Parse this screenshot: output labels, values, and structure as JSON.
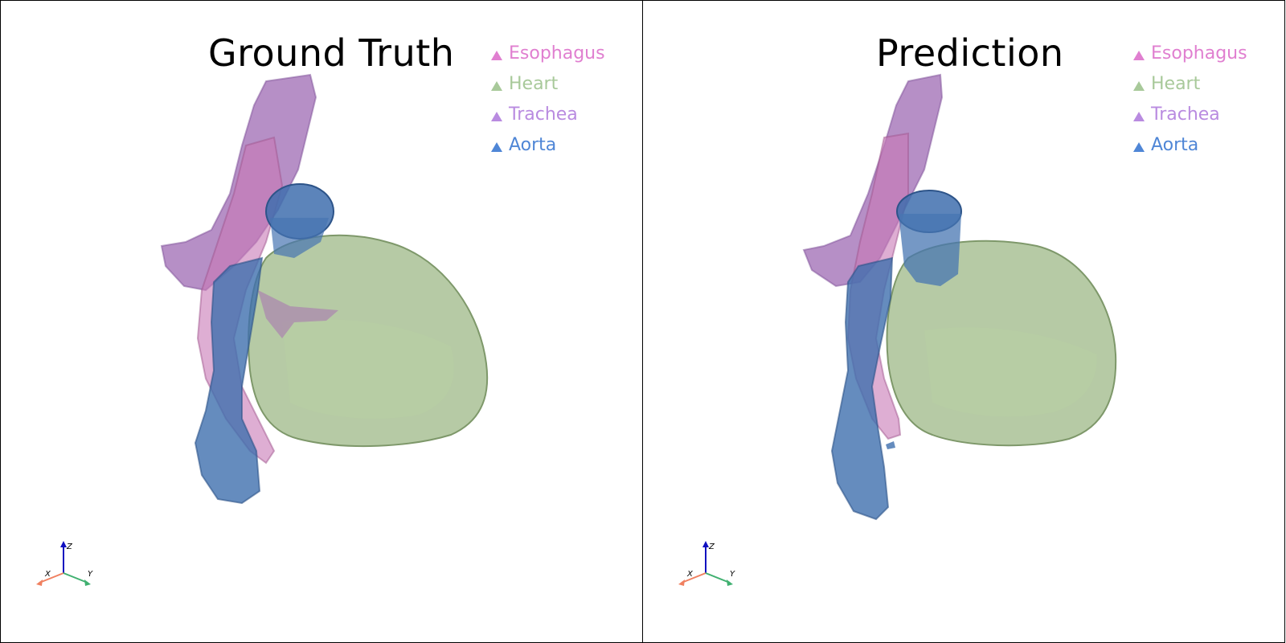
{
  "panels": [
    {
      "title": "Ground Truth",
      "legend": [
        {
          "label": "Esophagus",
          "color": "#e07fd0"
        },
        {
          "label": "Heart",
          "color": "#a8c99a"
        },
        {
          "label": "Trachea",
          "color": "#b98be0"
        },
        {
          "label": "Aorta",
          "color": "#4f86d6"
        }
      ],
      "axes": {
        "x": "X",
        "y": "Y",
        "z": "Z"
      }
    },
    {
      "title": "Prediction",
      "legend": [
        {
          "label": "Esophagus",
          "color": "#e07fd0"
        },
        {
          "label": "Heart",
          "color": "#a8c99a"
        },
        {
          "label": "Trachea",
          "color": "#b98be0"
        },
        {
          "label": "Aorta",
          "color": "#4f86d6"
        }
      ],
      "axes": {
        "x": "X",
        "y": "Y",
        "z": "Z"
      }
    }
  ],
  "colors": {
    "esophagus": "#c77bb8",
    "heart": "#a9bf95",
    "trachea": "#a67ab8",
    "aorta": "#4a77b3",
    "axis_x": "#f08060",
    "axis_y": "#40b070",
    "axis_z": "#1010c0"
  }
}
